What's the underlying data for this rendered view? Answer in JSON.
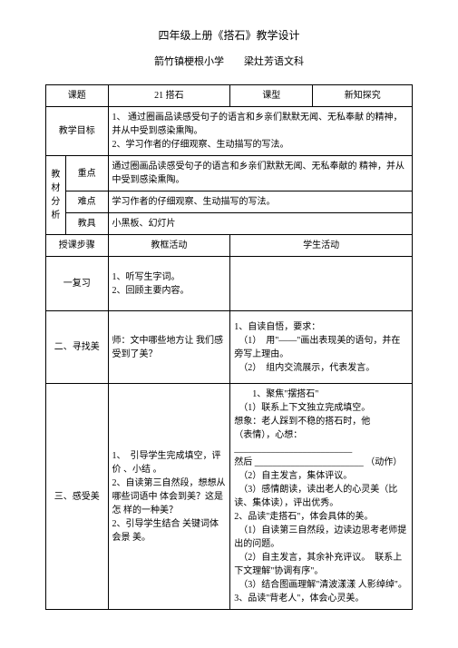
{
  "title": "四年级上册《搭石》教学设计",
  "subtitle": "箭竹镇梗根小学　　梁灶芳语文科",
  "rows": {
    "r1": {
      "label": "课题",
      "text": "21 搭石",
      "typeLabel": "课型",
      "typeVal": "新知探究"
    },
    "r2": {
      "label": "教学目标",
      "text": "1、 通过圈画品读感受句子的语言和乡亲们默默无闻、无私奉献 的精神，并从中受到感染熏陶。\n2、学习作者的仔细观察、生动描写的写法。"
    },
    "r3": {
      "group": "教材分析",
      "label": "重点",
      "text": "通过圈画品读感受句子的语言和乡亲们默默无闻、无私奉献的 精神，并从中受到感染熏陶。"
    },
    "r4": {
      "label": "难点",
      "text": " 学习作者的仔细观察、生动描写的写法。"
    },
    "r5": {
      "label": "教具",
      "text": "小黑板、幻灯片"
    },
    "r6": {
      "label": "授课步骤",
      "c1": "教框活动",
      "c2": "学生活动"
    },
    "r7": {
      "label": "一复习",
      "c1": "1、听写生字词。\n2、回顾主要内容。",
      "c2": ""
    },
    "r8": {
      "label": "二、寻找美",
      "c1": "师：文中哪些地方让 我们感受到了美？",
      "c2": "1、自读自悟，要求：\n　（1）　用\"——\"画出表现美的语句，并在旁写上理由。\n　（2）　组内交流展示，代表发言。"
    },
    "r9": {
      "label": "三、感受美",
      "c1": "1、　引导学生完成填空，评价 、小结 。\n2、自读第三自然段，想想从哪些词语中 体会到美？这是怎 样的一种美？\n2、引导学生结合 关键词体会景 美。",
      "c2": "　　1、聚焦\"摆搭石\"\n　（1）联系上下文独立完成填空。\n想象：老人踩到不稳的搭石时，他\n（表情），心想：\n__________________________\n然后 ________________________ （动作）\n　（2）自主发言，集体评议。\n　（3）感情朗读，读出老人的心灵美（比读、集体读），评出优秀。\n2、品读\"走搭石\"，体会具体的美。\n　（1）自读第三自然段，边读边思考老师提出的问题。\n　（2）自主发言，其余补充评议。　联系上下文理解\"协调有序\"。\n　（3）结合图画理解\"清波漾漾 人影绰绰\"。\n3、品读\"背老人\"，体会心灵美。"
    }
  }
}
